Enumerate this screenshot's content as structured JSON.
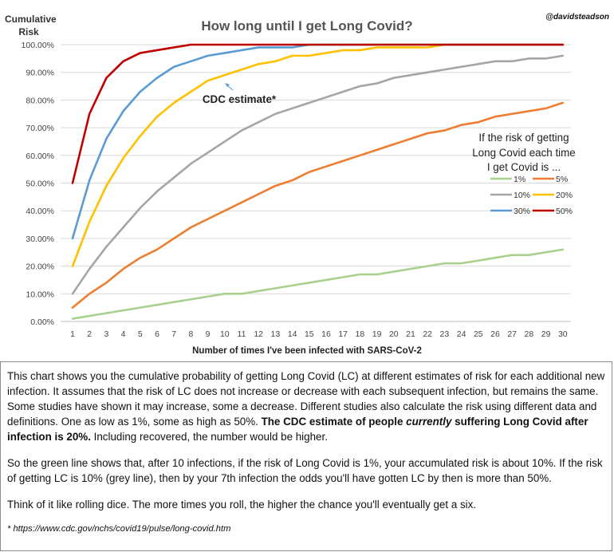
{
  "chart_data": {
    "type": "line",
    "title": "How long until I get Long Covid?",
    "handle": "@davidsteadson",
    "ylabel_line1": "Cumulative",
    "ylabel_line2": "Risk",
    "xlabel": "Number of times I've been infected with SARS-CoV-2",
    "ylim": [
      0,
      100
    ],
    "yticks": [
      "0.00%",
      "10.00%",
      "20.00%",
      "30.00%",
      "40.00%",
      "50.00%",
      "60.00%",
      "70.00%",
      "80.00%",
      "90.00%",
      "100.00%"
    ],
    "x": [
      1,
      2,
      3,
      4,
      5,
      6,
      7,
      8,
      9,
      10,
      11,
      12,
      13,
      14,
      15,
      16,
      17,
      18,
      19,
      20,
      21,
      22,
      23,
      24,
      25,
      26,
      27,
      28,
      29,
      30
    ],
    "grid": true,
    "legend_position": "right",
    "legend_title": [
      "If the risk of getting",
      "Long Covid each time",
      "I get Covid is ..."
    ],
    "annotation": "CDC estimate*",
    "series": [
      {
        "name": "1%",
        "color": "#a9d18e",
        "values": [
          1,
          2,
          3,
          4,
          5,
          6,
          7,
          8,
          9,
          10,
          10,
          11,
          12,
          13,
          14,
          15,
          16,
          17,
          17,
          18,
          19,
          20,
          21,
          21,
          22,
          23,
          24,
          24,
          25,
          26
        ]
      },
      {
        "name": "5%",
        "color": "#ed7d31",
        "values": [
          5,
          10,
          14,
          19,
          23,
          26,
          30,
          34,
          37,
          40,
          43,
          46,
          49,
          51,
          54,
          56,
          58,
          60,
          62,
          64,
          66,
          68,
          69,
          71,
          72,
          74,
          75,
          76,
          77,
          79
        ]
      },
      {
        "name": "10%",
        "color": "#a5a5a5",
        "values": [
          10,
          19,
          27,
          34,
          41,
          47,
          52,
          57,
          61,
          65,
          69,
          72,
          75,
          77,
          79,
          81,
          83,
          85,
          86,
          88,
          89,
          90,
          91,
          92,
          93,
          94,
          94,
          95,
          95,
          96
        ]
      },
      {
        "name": "20%",
        "color": "#ffc000",
        "values": [
          20,
          36,
          49,
          59,
          67,
          74,
          79,
          83,
          87,
          89,
          91,
          93,
          94,
          96,
          96,
          97,
          98,
          98,
          99,
          99,
          99,
          99,
          100,
          100,
          100,
          100,
          100,
          100,
          100,
          100
        ]
      },
      {
        "name": "30%",
        "color": "#5b9bd5",
        "values": [
          30,
          51,
          66,
          76,
          83,
          88,
          92,
          94,
          96,
          97,
          98,
          99,
          99,
          99,
          100,
          100,
          100,
          100,
          100,
          100,
          100,
          100,
          100,
          100,
          100,
          100,
          100,
          100,
          100,
          100
        ]
      },
      {
        "name": "50%",
        "color": "#c00000",
        "values": [
          50,
          75,
          88,
          94,
          97,
          98,
          99,
          100,
          100,
          100,
          100,
          100,
          100,
          100,
          100,
          100,
          100,
          100,
          100,
          100,
          100,
          100,
          100,
          100,
          100,
          100,
          100,
          100,
          100,
          100
        ]
      }
    ]
  },
  "note": {
    "para1_a": "This chart shows you the cumulative probability of getting Long Covid (LC) at different estimates of risk for each additional new infection. It assumes that the risk of LC does not increase or decrease with each subsequent infection, but remains the same. Some studies have shown it may increase, some a decrease. Different studies also calculate the risk using different data and definitions. One as low as 1%, some as high as 50%. ",
    "para1_b": "The CDC estimate of people ",
    "para1_c": "currently",
    "para1_d": " suffering Long Covid after infection is 20%.",
    "para1_e": " Including recovered, the number would be higher.",
    "para2": "So the green line shows that, after 10 infections, if the risk of Long Covid is 1%, your accumulated risk is about 10%. If the risk of getting LC is 10% (grey line), then by your 7th infection the odds you'll have gotten LC by then is more than 50%.",
    "para3": "Think of it like rolling dice. The more times you roll, the higher the chance you'll eventually get a six.",
    "source": "* https://www.cdc.gov/nchs/covid19/pulse/long-covid.htm"
  }
}
